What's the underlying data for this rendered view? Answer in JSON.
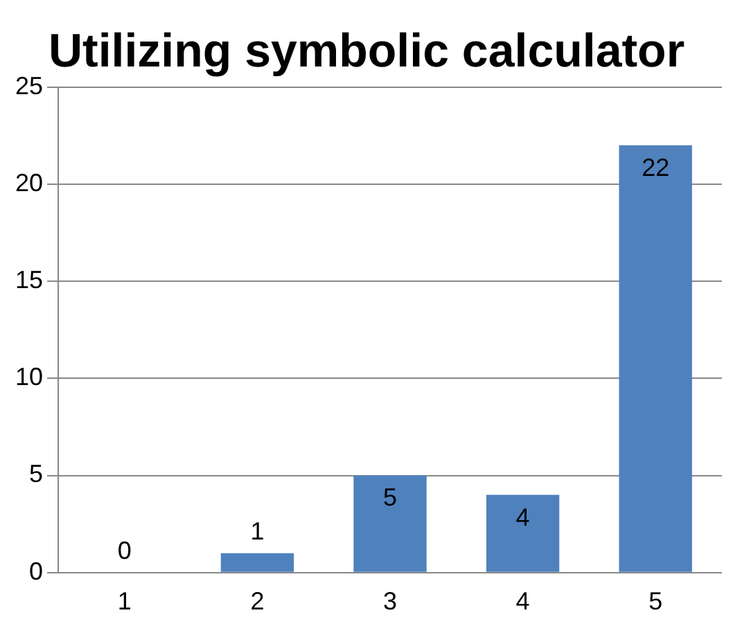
{
  "chart_data": {
    "type": "bar",
    "title": "Utilizing symbolic calculator",
    "categories": [
      "1",
      "2",
      "3",
      "4",
      "5"
    ],
    "values": [
      0,
      1,
      5,
      4,
      22
    ],
    "color": "#4f81bd",
    "ylim": [
      0,
      25
    ],
    "yticks": [
      0,
      5,
      10,
      15,
      20,
      25
    ],
    "grid": "y",
    "data_labels": true,
    "legend": false
  }
}
